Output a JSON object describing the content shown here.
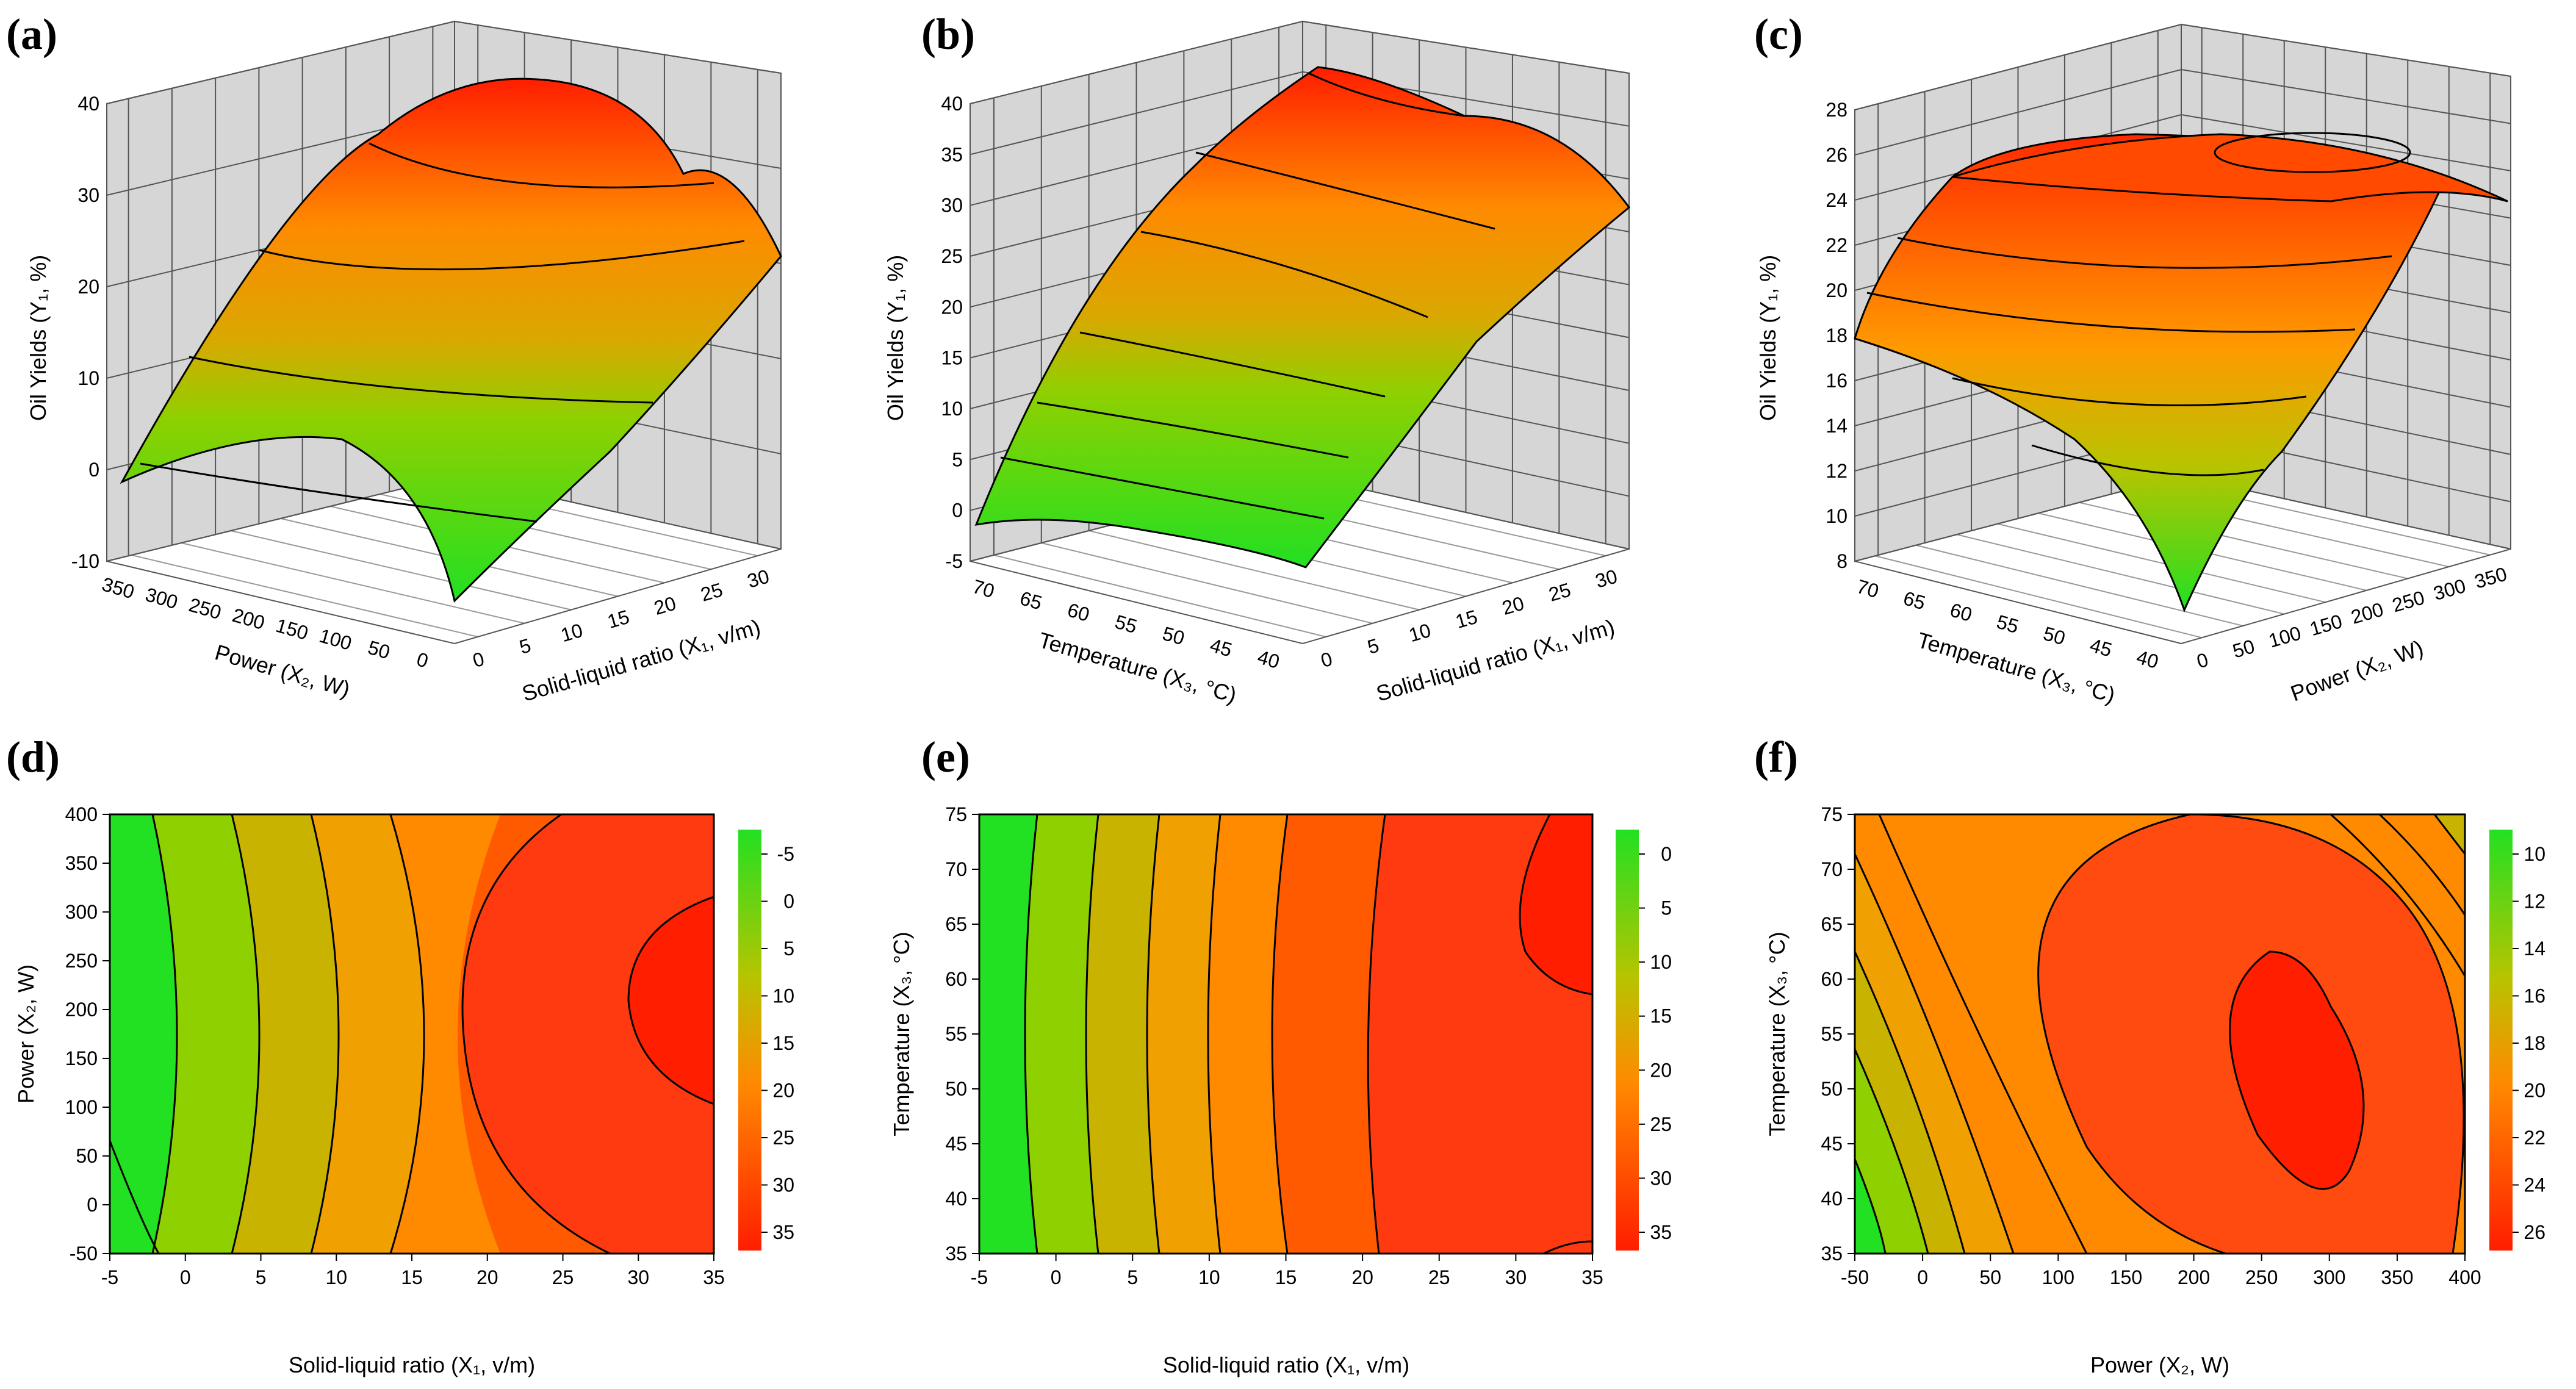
{
  "colors": {
    "green": "#22e022",
    "yellow_green": "#b7c400",
    "orange": "#ff8a00",
    "red": "#ff1e00",
    "grid_pane": "#d6d6d6"
  },
  "chart_data": [
    {
      "id": "a",
      "label": "(a)",
      "type": "surface3d",
      "zlabel": "Oil Yields (Y₁, %)",
      "xlabel": "Solid-liquid ratio (X₁, v/m)",
      "ylabel": "Power (X₂, W)",
      "z_ticks": [
        "40",
        "30",
        "20",
        "10",
        "0",
        "-10"
      ],
      "x_ticks": [
        "0",
        "5",
        "10",
        "15",
        "20",
        "25",
        "30"
      ],
      "y_ticks": [
        "350",
        "300",
        "250",
        "200",
        "150",
        "100",
        "50",
        "0"
      ],
      "zlim": [
        -10,
        40
      ]
    },
    {
      "id": "b",
      "label": "(b)",
      "type": "surface3d",
      "zlabel": "Oil Yields (Y₁, %)",
      "xlabel": "Solid-liquid ratio (X₁, v/m)",
      "ylabel": "Temperature (X₃, °C)",
      "z_ticks": [
        "40",
        "35",
        "30",
        "25",
        "20",
        "15",
        "10",
        "5",
        "0",
        "-5"
      ],
      "x_ticks": [
        "0",
        "5",
        "10",
        "15",
        "20",
        "25",
        "30"
      ],
      "y_ticks": [
        "70",
        "65",
        "60",
        "55",
        "50",
        "45",
        "40"
      ],
      "zlim": [
        -5,
        40
      ]
    },
    {
      "id": "c",
      "label": "(c)",
      "type": "surface3d",
      "zlabel": "Oil Yields (Y₁, %)",
      "xlabel": "Power (X₂, W)",
      "ylabel": "Temperature (X₃, °C)",
      "z_ticks": [
        "28",
        "26",
        "24",
        "22",
        "20",
        "18",
        "16",
        "14",
        "12",
        "10",
        "8"
      ],
      "x_ticks": [
        "0",
        "50",
        "100",
        "150",
        "200",
        "250",
        "300",
        "350"
      ],
      "y_ticks": [
        "70",
        "65",
        "60",
        "55",
        "50",
        "45",
        "40"
      ],
      "zlim": [
        8,
        28
      ]
    },
    {
      "id": "d",
      "label": "(d)",
      "type": "contour",
      "xlabel": "Solid-liquid ratio (X₁, v/m)",
      "ylabel": "Power (X₂, W)",
      "x_ticks": [
        "-5",
        "0",
        "5",
        "10",
        "15",
        "20",
        "25",
        "30",
        "35"
      ],
      "y_ticks": [
        "400",
        "350",
        "300",
        "250",
        "200",
        "150",
        "100",
        "50",
        "0",
        "-50"
      ],
      "xlim": [
        -5,
        35
      ],
      "ylim": [
        -50,
        400
      ],
      "colorbar_ticks": [
        "-5",
        "0",
        "5",
        "10",
        "15",
        "20",
        "25",
        "30",
        "35"
      ]
    },
    {
      "id": "e",
      "label": "(e)",
      "type": "contour",
      "xlabel": "Solid-liquid ratio (X₁, v/m)",
      "ylabel": "Temperature (X₃, °C)",
      "x_ticks": [
        "-5",
        "0",
        "5",
        "10",
        "15",
        "20",
        "25",
        "30",
        "35"
      ],
      "y_ticks": [
        "75",
        "70",
        "65",
        "60",
        "55",
        "50",
        "45",
        "40",
        "35"
      ],
      "xlim": [
        -5,
        35
      ],
      "ylim": [
        35,
        75
      ],
      "colorbar_ticks": [
        "0",
        "5",
        "10",
        "15",
        "20",
        "25",
        "30",
        "35"
      ]
    },
    {
      "id": "f",
      "label": "(f)",
      "type": "contour",
      "xlabel": "Power (X₂, W)",
      "ylabel": "Temperature (X₃, °C)",
      "x_ticks": [
        "-50",
        "0",
        "50",
        "100",
        "150",
        "200",
        "250",
        "300",
        "350",
        "400"
      ],
      "y_ticks": [
        "75",
        "70",
        "65",
        "60",
        "55",
        "50",
        "45",
        "40",
        "35"
      ],
      "xlim": [
        -50,
        400
      ],
      "ylim": [
        35,
        75
      ],
      "colorbar_ticks": [
        "10",
        "12",
        "14",
        "16",
        "18",
        "20",
        "22",
        "24",
        "26"
      ]
    }
  ]
}
